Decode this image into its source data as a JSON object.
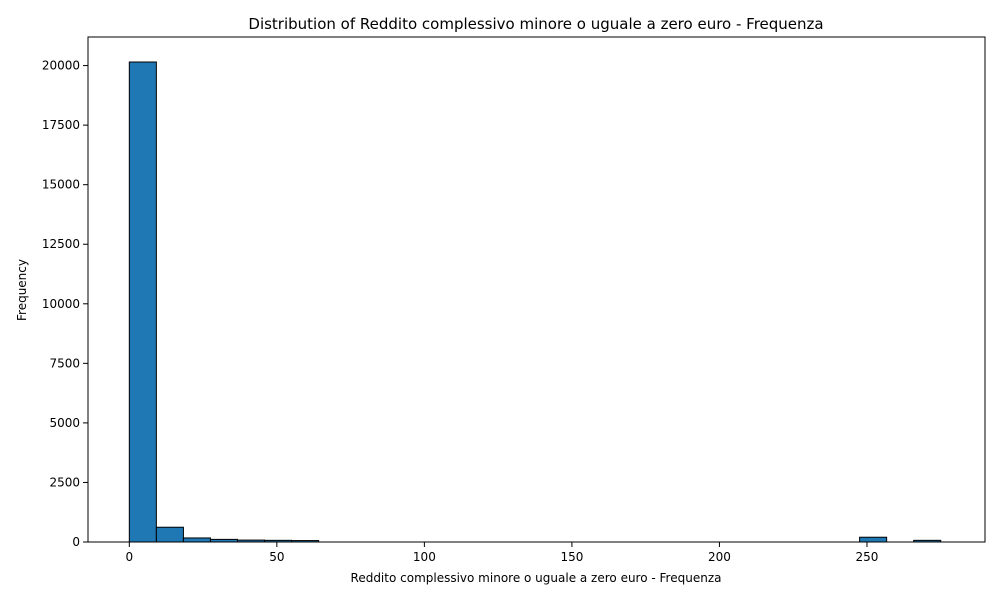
{
  "chart_data": {
    "type": "bar",
    "title": "Distribution of Reddito complessivo minore o uguale a zero euro - Frequenza",
    "xlabel": "Reddito complessivo minore o uguale a zero euro - Frequenza",
    "ylabel": "Frequency",
    "xlim": [
      -14,
      290
    ],
    "ylim": [
      0,
      21200
    ],
    "x_ticks": [
      0,
      50,
      100,
      150,
      200,
      250
    ],
    "y_ticks": [
      0,
      2500,
      5000,
      7500,
      10000,
      12500,
      15000,
      17500,
      20000
    ],
    "bin_width": 9.17,
    "bins": [
      {
        "start": 0.0,
        "value": 20150
      },
      {
        "start": 9.17,
        "value": 620
      },
      {
        "start": 18.33,
        "value": 170
      },
      {
        "start": 27.5,
        "value": 110
      },
      {
        "start": 36.67,
        "value": 80
      },
      {
        "start": 45.83,
        "value": 70
      },
      {
        "start": 55.0,
        "value": 60
      },
      {
        "start": 64.17,
        "value": 0
      },
      {
        "start": 73.33,
        "value": 0
      },
      {
        "start": 82.5,
        "value": 0
      },
      {
        "start": 91.67,
        "value": 0
      },
      {
        "start": 100.83,
        "value": 0
      },
      {
        "start": 110.0,
        "value": 0
      },
      {
        "start": 119.17,
        "value": 0
      },
      {
        "start": 128.33,
        "value": 0
      },
      {
        "start": 137.5,
        "value": 0
      },
      {
        "start": 146.67,
        "value": 0
      },
      {
        "start": 155.83,
        "value": 0
      },
      {
        "start": 165.0,
        "value": 0
      },
      {
        "start": 174.17,
        "value": 0
      },
      {
        "start": 183.33,
        "value": 0
      },
      {
        "start": 192.5,
        "value": 0
      },
      {
        "start": 201.67,
        "value": 0
      },
      {
        "start": 210.83,
        "value": 0
      },
      {
        "start": 220.0,
        "value": 0
      },
      {
        "start": 229.17,
        "value": 0
      },
      {
        "start": 238.33,
        "value": 0
      },
      {
        "start": 247.5,
        "value": 200
      },
      {
        "start": 256.67,
        "value": 0
      },
      {
        "start": 265.83,
        "value": 70
      }
    ],
    "bar_color": "#1f77b4",
    "edge_color": "#000000",
    "grid": false,
    "legend": "none"
  }
}
